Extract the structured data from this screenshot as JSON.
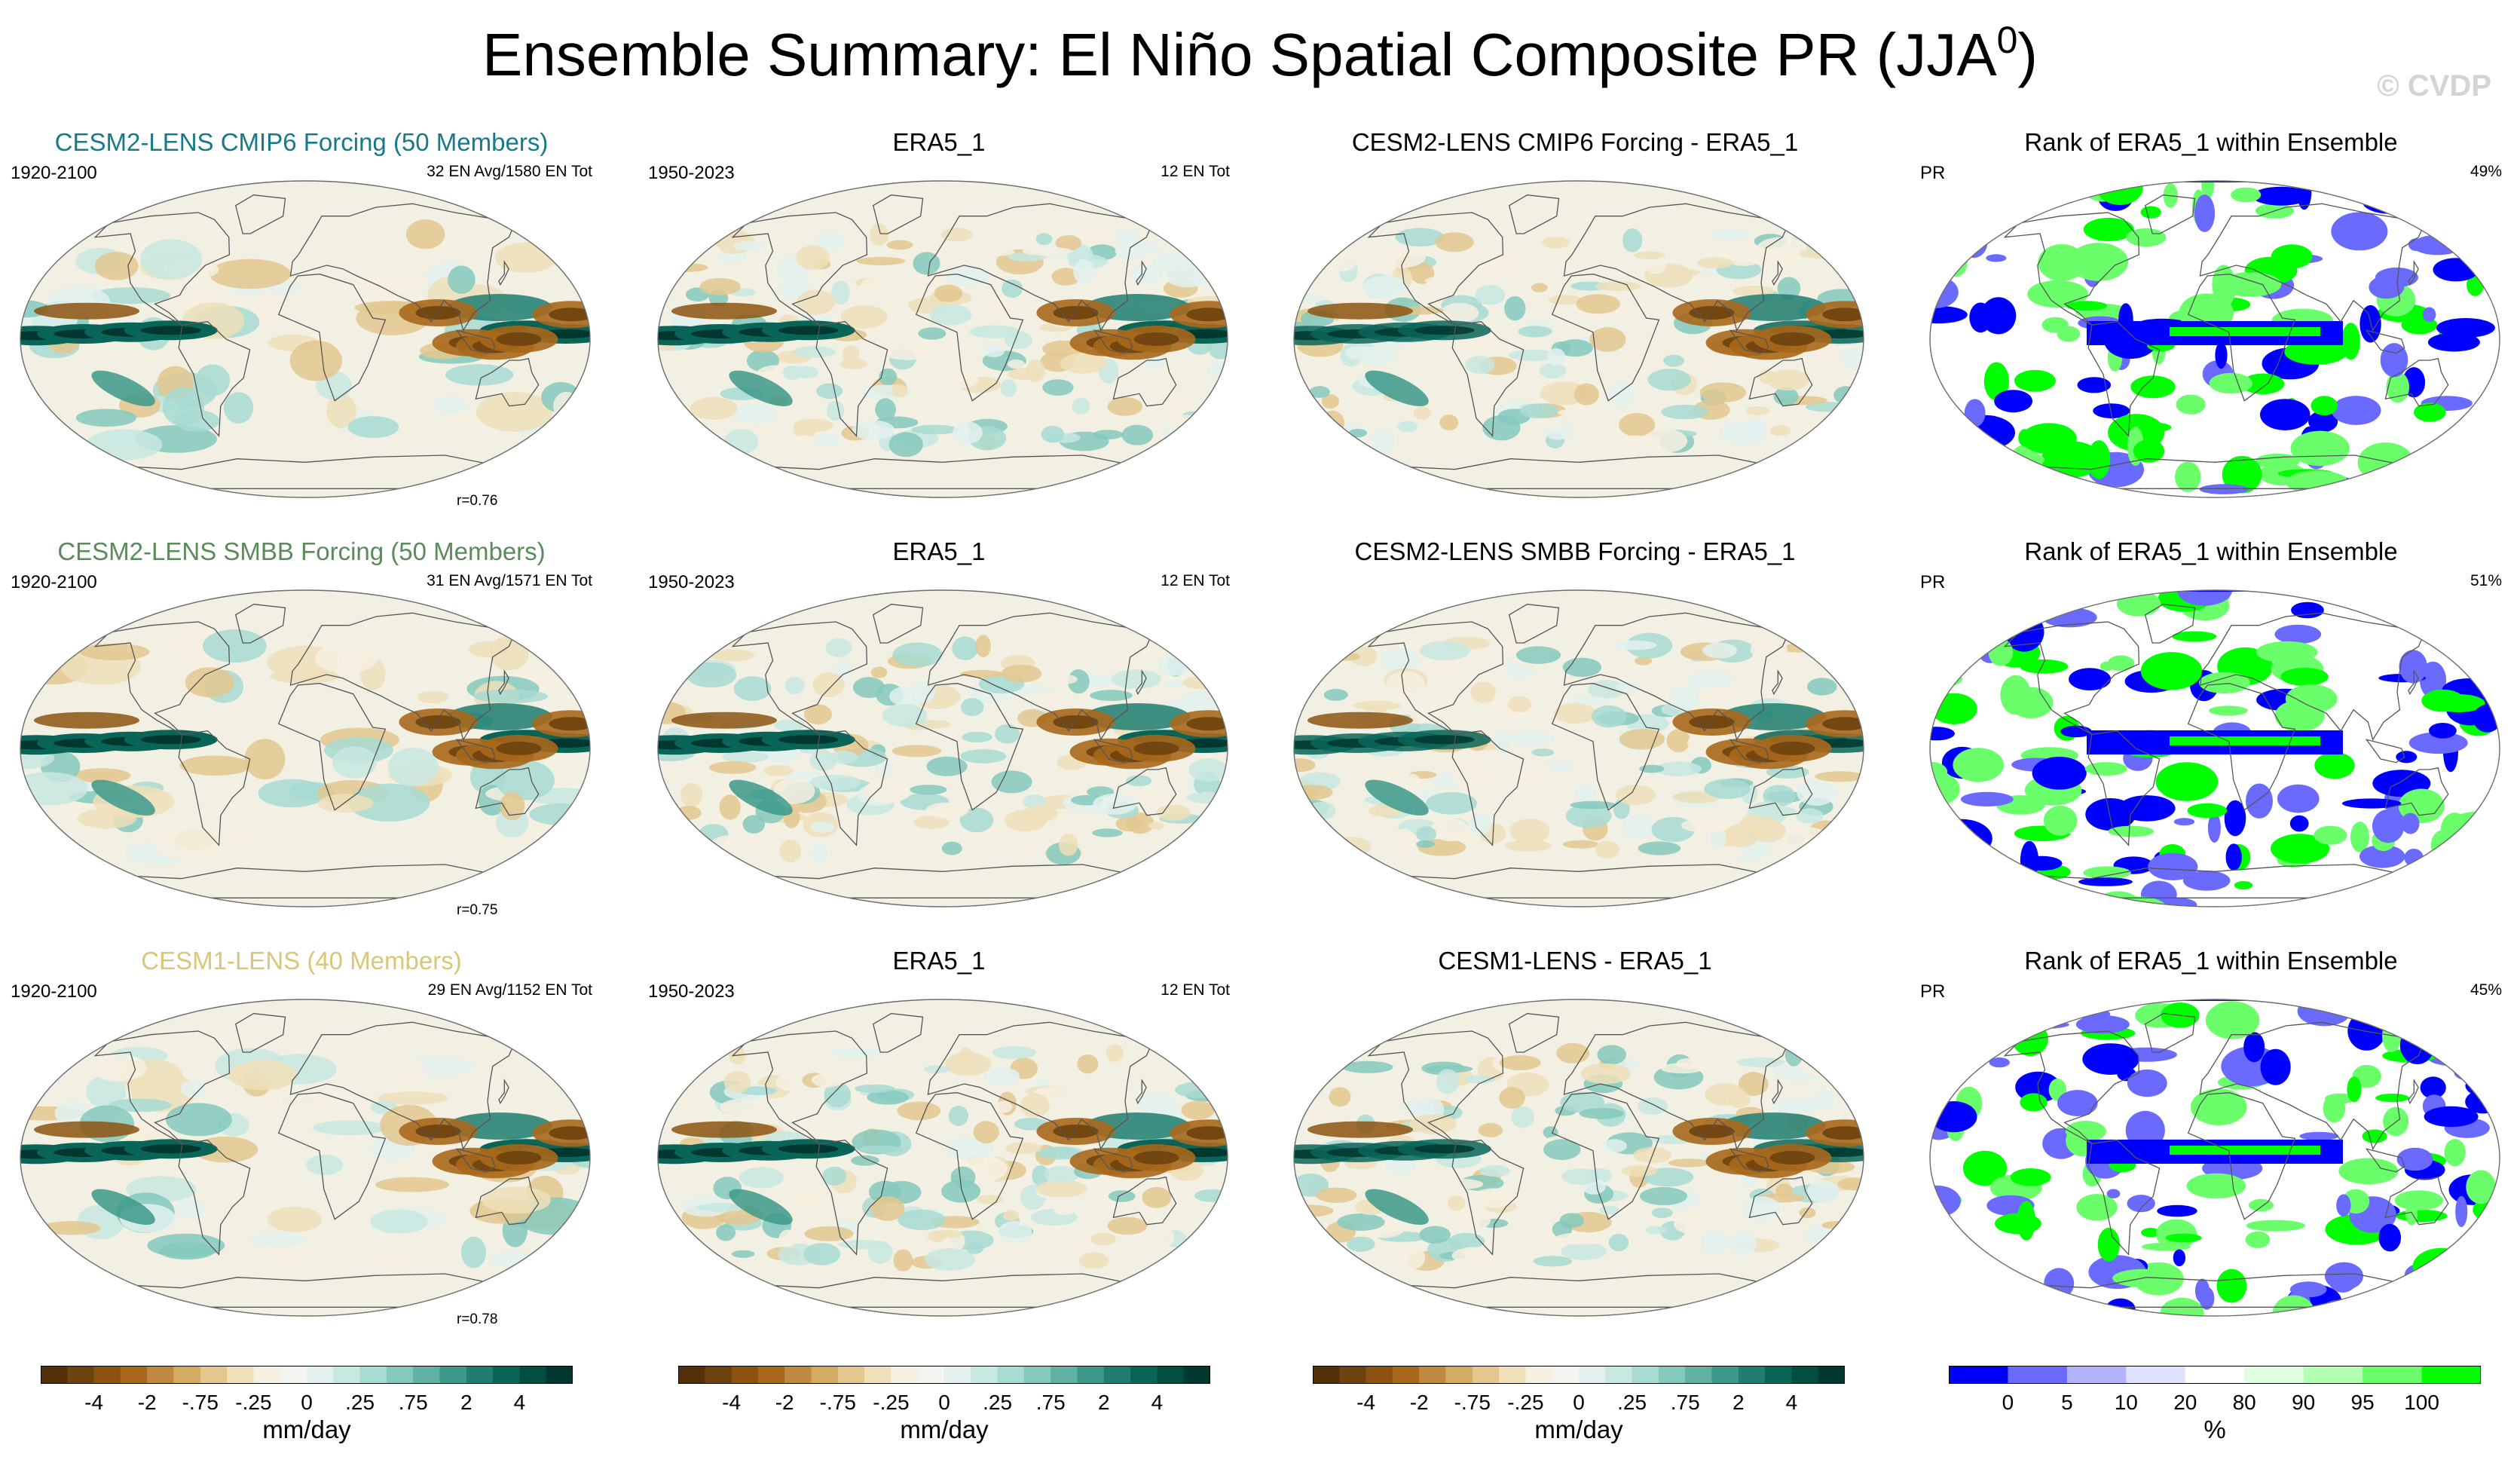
{
  "figure": {
    "title": "Ensemble Summary: El Niño Spatial Composite PR (JJA",
    "title_sup": "0",
    "title_close": ")",
    "watermark": "© CVDP"
  },
  "colors": {
    "cesm2_cmip6": "#167a8a",
    "cesm2_smbb": "#5b8a5b",
    "cesm1": "#d8c67a",
    "coast": "#555555"
  },
  "chart_data": {
    "type": "heatmap",
    "description_grid": "4 columns x 3 rows of global maps (Robinson projection)",
    "rows": [
      {
        "panels": [
          {
            "title": "CESM2-LENS CMIP6 Forcing (50 Members)",
            "title_color": "#167a8a",
            "left": "1920-2100",
            "right": "32 EN Avg/1580 EN Tot",
            "corr": "r=0.76",
            "kind": "ensemble"
          },
          {
            "title": "ERA5_1",
            "left": "1950-2023",
            "right": "12 EN Tot",
            "corr": "",
            "kind": "obs"
          },
          {
            "title": "CESM2-LENS CMIP6 Forcing - ERA5_1",
            "left": "",
            "right": "",
            "corr": "",
            "kind": "diff"
          },
          {
            "title": "Rank of ERA5_1 within Ensemble",
            "left": "PR",
            "right": "49%",
            "corr": "",
            "kind": "rank"
          }
        ]
      },
      {
        "panels": [
          {
            "title": "CESM2-LENS SMBB Forcing (50 Members)",
            "title_color": "#5b8a5b",
            "left": "1920-2100",
            "right": "31 EN Avg/1571 EN Tot",
            "corr": "r=0.75",
            "kind": "ensemble"
          },
          {
            "title": "ERA5_1",
            "left": "1950-2023",
            "right": "12 EN Tot",
            "corr": "",
            "kind": "obs"
          },
          {
            "title": "CESM2-LENS SMBB Forcing - ERA5_1",
            "left": "",
            "right": "",
            "corr": "",
            "kind": "diff"
          },
          {
            "title": "Rank of ERA5_1 within Ensemble",
            "left": "PR",
            "right": "51%",
            "corr": "",
            "kind": "rank"
          }
        ]
      },
      {
        "panels": [
          {
            "title": "CESM1-LENS (40 Members)",
            "title_color": "#d8c67a",
            "left": "1920-2100",
            "right": "29 EN Avg/1152 EN Tot",
            "corr": "r=0.78",
            "kind": "ensemble"
          },
          {
            "title": "ERA5_1",
            "left": "1950-2023",
            "right": "12 EN Tot",
            "corr": "",
            "kind": "obs"
          },
          {
            "title": "CESM1-LENS - ERA5_1",
            "left": "",
            "right": "",
            "corr": "",
            "kind": "diff"
          },
          {
            "title": "Rank of ERA5_1 within Ensemble",
            "left": "PR",
            "right": "45%",
            "corr": "",
            "kind": "rank"
          }
        ]
      }
    ],
    "colorbars": [
      {
        "unit": "mm/day",
        "colors": [
          "#54300a",
          "#6e420e",
          "#8c5311",
          "#a8681c",
          "#bf8a3f",
          "#d4ab62",
          "#e3c78f",
          "#efdfba",
          "#f6f0e1",
          "#f3f5f1",
          "#e2f1ef",
          "#c8e8e2",
          "#a8dbd2",
          "#85c9bd",
          "#5fb2a4",
          "#3c998b",
          "#1f7e71",
          "#0a6559",
          "#004d42",
          "#00372e"
        ],
        "ticks": [
          "-4",
          "-2",
          "-.75",
          "-.25",
          "0",
          ".25",
          ".75",
          "2",
          "4"
        ]
      },
      {
        "unit": "mm/day",
        "colors": [
          "#54300a",
          "#6e420e",
          "#8c5311",
          "#a8681c",
          "#bf8a3f",
          "#d4ab62",
          "#e3c78f",
          "#efdfba",
          "#f6f0e1",
          "#f3f5f1",
          "#e2f1ef",
          "#c8e8e2",
          "#a8dbd2",
          "#85c9bd",
          "#5fb2a4",
          "#3c998b",
          "#1f7e71",
          "#0a6559",
          "#004d42",
          "#00372e"
        ],
        "ticks": [
          "-4",
          "-2",
          "-.75",
          "-.25",
          "0",
          ".25",
          ".75",
          "2",
          "4"
        ]
      },
      {
        "unit": "mm/day",
        "colors": [
          "#54300a",
          "#6e420e",
          "#8c5311",
          "#a8681c",
          "#bf8a3f",
          "#d4ab62",
          "#e3c78f",
          "#efdfba",
          "#f6f0e1",
          "#f3f5f1",
          "#e2f1ef",
          "#c8e8e2",
          "#a8dbd2",
          "#85c9bd",
          "#5fb2a4",
          "#3c998b",
          "#1f7e71",
          "#0a6559",
          "#004d42",
          "#00372e"
        ],
        "ticks": [
          "-4",
          "-2",
          "-.75",
          "-.25",
          "0",
          ".25",
          ".75",
          "2",
          "4"
        ]
      },
      {
        "unit": "%",
        "colors": [
          "#0000ff",
          "#6a6aff",
          "#b3b3ff",
          "#e0e0ff",
          "#ffffff",
          "#e0ffe0",
          "#b3ffb3",
          "#6aff6a",
          "#00ff00"
        ],
        "ticks": [
          "0",
          "5",
          "10",
          "20",
          "80",
          "90",
          "95",
          "100"
        ]
      }
    ]
  }
}
